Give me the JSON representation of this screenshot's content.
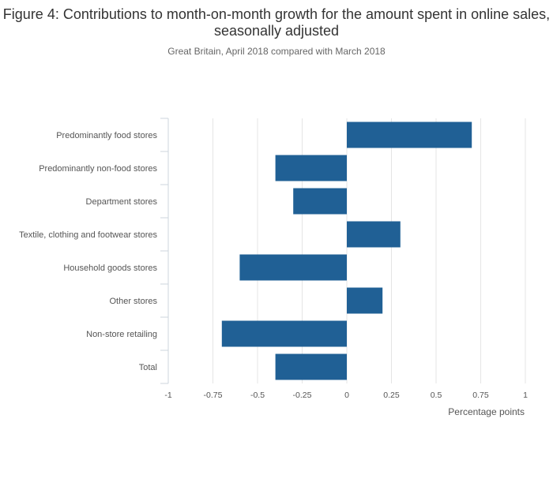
{
  "title": "Figure 4: Contributions to month-on-month growth for the amount spent in online sales, seasonally adjusted",
  "subtitle": "Great Britain, April 2018 compared with March 2018",
  "chart_data": {
    "type": "bar",
    "orientation": "horizontal",
    "title": "Figure 4: Contributions to month-on-month growth for the amount spent in online sales, seasonally adjusted",
    "subtitle": "Great Britain, April 2018 compared with March 2018",
    "categories": [
      "Predominantly food stores",
      "Predominantly non-food stores",
      "Department stores",
      "Textile, clothing and footwear stores",
      "Household goods stores",
      "Other stores",
      "Non-store retailing",
      "Total"
    ],
    "values": [
      0.7,
      -0.4,
      -0.3,
      0.3,
      -0.6,
      0.2,
      -0.7,
      -0.4
    ],
    "xlabel": "Percentage points",
    "ylabel": "",
    "xlim": [
      -1,
      1
    ],
    "xticks": [
      -1,
      -0.75,
      -0.5,
      -0.25,
      0,
      0.25,
      0.5,
      0.75,
      1
    ],
    "xtick_labels": [
      "-1",
      "-0.75",
      "-0.5",
      "-0.25",
      "0",
      "0.25",
      "0.5",
      "0.75",
      "1"
    ],
    "grid": "vertical",
    "legend": "none",
    "colors": {
      "bar": "#206095",
      "grid": "#e5e5e5",
      "axis": "#ccd6dd"
    }
  }
}
